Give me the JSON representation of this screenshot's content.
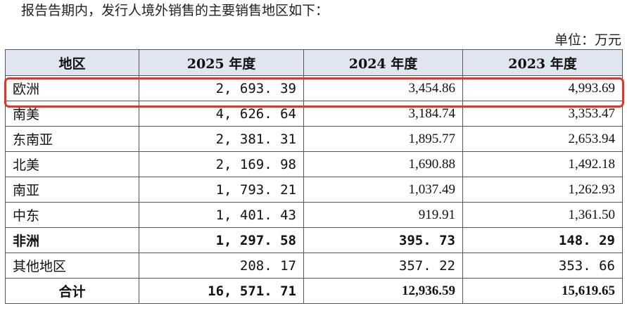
{
  "intro_text": "报告告期内，发行人境外销售的主要销售地区如下：",
  "unit_text": "单位：万元",
  "table": {
    "headers": [
      "地区",
      "2025 年度",
      "2024 年度",
      "2023 年度"
    ],
    "rows": [
      {
        "region": "欧洲",
        "y2025": "2, 693. 39",
        "y2024": "3,454.86",
        "y2023": "4,993.69"
      },
      {
        "region": "南美",
        "y2025": "4, 626. 64",
        "y2024": "3,184.74",
        "y2023": "3,353.47"
      },
      {
        "region": "东南亚",
        "y2025": "2, 381. 31",
        "y2024": "1,895.77",
        "y2023": "2,653.94"
      },
      {
        "region": "北美",
        "y2025": "2, 169. 98",
        "y2024": "1,690.88",
        "y2023": "1,492.18"
      },
      {
        "region": "南亚",
        "y2025": "1, 793. 21",
        "y2024": "1,037.49",
        "y2023": "1,262.93"
      },
      {
        "region": "中东",
        "y2025": "1, 401. 43",
        "y2024": "919.91",
        "y2023": "1,361.50"
      },
      {
        "region": "非洲",
        "y2025": "1, 297. 58",
        "y2024": "395. 73",
        "y2023": "148. 29"
      },
      {
        "region": "其他地区",
        "y2025": "208. 17",
        "y2024": "357. 22",
        "y2023": "353. 66"
      }
    ],
    "total": {
      "region": "合计",
      "y2025": "16, 571. 71",
      "y2024": "12,936.59",
      "y2023": "15,619.65"
    }
  },
  "highlight_color": "#e0352b",
  "header_bg": "#dfe6ef"
}
